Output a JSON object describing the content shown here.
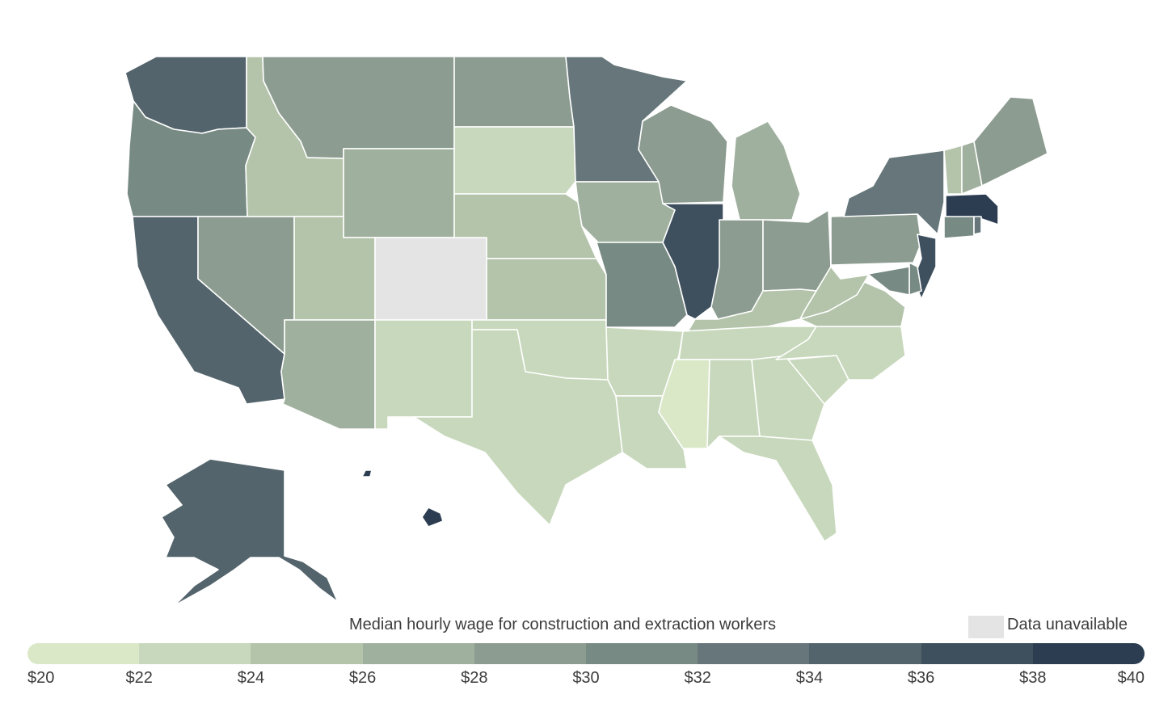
{
  "legend": {
    "title": "Median hourly wage for construction and extraction workers",
    "na_label": "Data unavailable",
    "na_color": "#e4e4e4",
    "bins": [
      {
        "label": "$20",
        "color": "#dbe8c8"
      },
      {
        "label": "$22",
        "color": "#c8d8bc"
      },
      {
        "label": "$24",
        "color": "#b4c4ab"
      },
      {
        "label": "$26",
        "color": "#a0b09e"
      },
      {
        "label": "$28",
        "color": "#8c9c90"
      },
      {
        "label": "$30",
        "color": "#788a84"
      },
      {
        "label": "$32",
        "color": "#66767a"
      },
      {
        "label": "$34",
        "color": "#54646c"
      },
      {
        "label": "$36",
        "color": "#3e4f5e"
      },
      {
        "label": "$38",
        "color": "#2c3d52"
      }
    ],
    "max_label": "$40"
  },
  "states": [
    {
      "id": "WA",
      "bin": 7
    },
    {
      "id": "OR",
      "bin": 5
    },
    {
      "id": "CA",
      "bin": 7
    },
    {
      "id": "NV",
      "bin": 4
    },
    {
      "id": "ID",
      "bin": 2
    },
    {
      "id": "MT",
      "bin": 4
    },
    {
      "id": "WY",
      "bin": 3
    },
    {
      "id": "UT",
      "bin": 2
    },
    {
      "id": "AZ",
      "bin": 3
    },
    {
      "id": "CO",
      "bin": null
    },
    {
      "id": "NM",
      "bin": 1
    },
    {
      "id": "ND",
      "bin": 4
    },
    {
      "id": "SD",
      "bin": 1
    },
    {
      "id": "NE",
      "bin": 2
    },
    {
      "id": "KS",
      "bin": 2
    },
    {
      "id": "OK",
      "bin": 1
    },
    {
      "id": "TX",
      "bin": 1
    },
    {
      "id": "MN",
      "bin": 6
    },
    {
      "id": "IA",
      "bin": 3
    },
    {
      "id": "MO",
      "bin": 5
    },
    {
      "id": "AR",
      "bin": 1
    },
    {
      "id": "LA",
      "bin": 1
    },
    {
      "id": "WI",
      "bin": 4
    },
    {
      "id": "IL",
      "bin": 8
    },
    {
      "id": "MI",
      "bin": 3
    },
    {
      "id": "IN",
      "bin": 4
    },
    {
      "id": "OH",
      "bin": 4
    },
    {
      "id": "KY",
      "bin": 2
    },
    {
      "id": "TN",
      "bin": 1
    },
    {
      "id": "MS",
      "bin": 0
    },
    {
      "id": "AL",
      "bin": 1
    },
    {
      "id": "GA",
      "bin": 1
    },
    {
      "id": "FL",
      "bin": 1
    },
    {
      "id": "SC",
      "bin": 1
    },
    {
      "id": "NC",
      "bin": 1
    },
    {
      "id": "VA",
      "bin": 2
    },
    {
      "id": "WV",
      "bin": 2
    },
    {
      "id": "PA",
      "bin": 4
    },
    {
      "id": "NY",
      "bin": 6
    },
    {
      "id": "VT",
      "bin": 2
    },
    {
      "id": "NH",
      "bin": 3
    },
    {
      "id": "ME",
      "bin": 4
    },
    {
      "id": "MA",
      "bin": 9
    },
    {
      "id": "CT",
      "bin": 5
    },
    {
      "id": "RI",
      "bin": 6
    },
    {
      "id": "NJ",
      "bin": 8
    },
    {
      "id": "DE",
      "bin": 5
    },
    {
      "id": "MD",
      "bin": 5
    },
    {
      "id": "AK",
      "bin": 7
    },
    {
      "id": "HI",
      "bin": 9
    }
  ]
}
